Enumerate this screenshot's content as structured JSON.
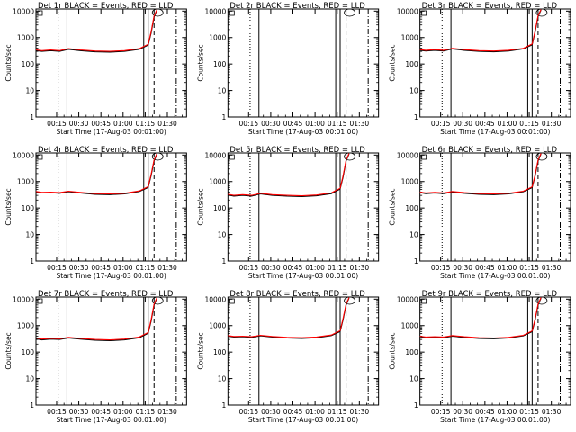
{
  "colors": {
    "events": "#000000",
    "lld": "#ff0000",
    "background": "#ffffff"
  },
  "chart_data": [
    {
      "type": "line",
      "title": "Det 1r BLACK = Events, RED = LLD",
      "xlabel": "Start Time (17-Aug-03 00:01:00)",
      "ylabel": "Counts/sec",
      "x_tick_labels": [
        "00:15",
        "00:30",
        "00:45",
        "01:00",
        "01:15",
        "01:30"
      ],
      "y_tick_labels": [
        "1",
        "10",
        "100",
        "1000",
        "10000"
      ],
      "ylim": [
        1,
        12000
      ],
      "y_scale": "log",
      "x_unit": "minutes since 00:01",
      "xlim": [
        0,
        102
      ],
      "series": [
        {
          "name": "Events",
          "color": "#000000",
          "x": [
            0,
            4,
            10,
            16,
            22,
            30,
            40,
            50,
            60,
            70,
            76,
            78,
            80,
            82
          ],
          "y": [
            320,
            300,
            320,
            300,
            360,
            320,
            290,
            280,
            300,
            360,
            520,
            1500,
            6000,
            11000
          ]
        },
        {
          "name": "LLD",
          "color": "#ff0000",
          "x": [
            0,
            4,
            10,
            16,
            22,
            30,
            40,
            50,
            60,
            70,
            76,
            78,
            80,
            82
          ],
          "y": [
            340,
            320,
            340,
            320,
            380,
            340,
            310,
            300,
            320,
            380,
            560,
            1700,
            6500,
            11500
          ]
        }
      ],
      "vlines": [
        {
          "x": 15,
          "style": "dotted"
        },
        {
          "x": 21,
          "style": "solid"
        },
        {
          "x": 73,
          "style": "solid"
        },
        {
          "x": 76,
          "style": "solid"
        },
        {
          "x": 80,
          "style": "dashed"
        },
        {
          "x": 95,
          "style": "dashdot"
        }
      ]
    },
    {
      "type": "line",
      "title": "Det 2r BLACK = Events, RED = LLD",
      "xlabel": "Start Time (17-Aug-03 00:01:00)",
      "ylabel": "Counts/sec",
      "x_tick_labels": [
        "00:15",
        "00:30",
        "00:45",
        "01:00",
        "01:15",
        "01:30"
      ],
      "y_tick_labels": [
        "1",
        "10",
        "100",
        "1000",
        "10000"
      ],
      "ylim": [
        1,
        12000
      ],
      "y_scale": "log",
      "x_unit": "minutes since 00:01",
      "xlim": [
        0,
        102
      ],
      "series": [],
      "vlines": [
        {
          "x": 15,
          "style": "dotted"
        },
        {
          "x": 21,
          "style": "solid"
        },
        {
          "x": 73,
          "style": "solid"
        },
        {
          "x": 76,
          "style": "solid"
        },
        {
          "x": 80,
          "style": "dashed"
        },
        {
          "x": 95,
          "style": "dashdot"
        }
      ]
    },
    {
      "type": "line",
      "title": "Det 3r BLACK = Events, RED = LLD",
      "xlabel": "Start Time (17-Aug-03 00:01:00)",
      "ylabel": "Counts/sec",
      "x_tick_labels": [
        "00:15",
        "00:30",
        "00:45",
        "01:00",
        "01:15",
        "01:30"
      ],
      "y_tick_labels": [
        "1",
        "10",
        "100",
        "1000",
        "10000"
      ],
      "ylim": [
        1,
        12000
      ],
      "y_scale": "log",
      "x_unit": "minutes since 00:01",
      "xlim": [
        0,
        102
      ],
      "series": [
        {
          "name": "Events",
          "color": "#000000",
          "x": [
            0,
            4,
            10,
            16,
            22,
            30,
            40,
            50,
            60,
            70,
            76,
            78,
            80,
            82
          ],
          "y": [
            330,
            310,
            330,
            310,
            370,
            330,
            300,
            290,
            310,
            370,
            530,
            1600,
            6200,
            11000
          ]
        },
        {
          "name": "LLD",
          "color": "#ff0000",
          "x": [
            0,
            4,
            10,
            16,
            22,
            30,
            40,
            50,
            60,
            70,
            76,
            78,
            80,
            82
          ],
          "y": [
            350,
            330,
            350,
            330,
            390,
            350,
            320,
            310,
            330,
            390,
            570,
            1800,
            6700,
            11500
          ]
        }
      ],
      "vlines": [
        {
          "x": 15,
          "style": "dotted"
        },
        {
          "x": 21,
          "style": "solid"
        },
        {
          "x": 73,
          "style": "solid"
        },
        {
          "x": 76,
          "style": "solid"
        },
        {
          "x": 80,
          "style": "dashed"
        },
        {
          "x": 95,
          "style": "dashdot"
        }
      ]
    },
    {
      "type": "line",
      "title": "Det 4r BLACK = Events, RED = LLD",
      "xlabel": "Start Time (17-Aug-03 00:01:00)",
      "ylabel": "Counts/sec",
      "x_tick_labels": [
        "00:15",
        "00:30",
        "00:45",
        "01:00",
        "01:15",
        "01:30"
      ],
      "y_tick_labels": [
        "1",
        "10",
        "100",
        "1000",
        "10000"
      ],
      "ylim": [
        1,
        12000
      ],
      "y_scale": "log",
      "x_unit": "minutes since 00:01",
      "xlim": [
        0,
        102
      ],
      "series": [
        {
          "name": "Events",
          "color": "#000000",
          "x": [
            0,
            4,
            10,
            16,
            22,
            30,
            40,
            50,
            60,
            70,
            76,
            78,
            80,
            82
          ],
          "y": [
            400,
            370,
            380,
            360,
            410,
            370,
            330,
            320,
            340,
            420,
            600,
            1700,
            6000,
            11000
          ]
        },
        {
          "name": "LLD",
          "color": "#ff0000",
          "x": [
            0,
            4,
            10,
            16,
            22,
            30,
            40,
            50,
            60,
            70,
            76,
            78,
            80,
            82
          ],
          "y": [
            420,
            390,
            400,
            380,
            430,
            390,
            350,
            340,
            360,
            440,
            640,
            1900,
            6500,
            11500
          ]
        }
      ],
      "vlines": [
        {
          "x": 15,
          "style": "dotted"
        },
        {
          "x": 21,
          "style": "solid"
        },
        {
          "x": 73,
          "style": "solid"
        },
        {
          "x": 76,
          "style": "solid"
        },
        {
          "x": 80,
          "style": "dashed"
        },
        {
          "x": 95,
          "style": "dashdot"
        }
      ]
    },
    {
      "type": "line",
      "title": "Det 5r BLACK = Events, RED = LLD",
      "xlabel": "Start Time (17-Aug-03 00:01:00)",
      "ylabel": "Counts/sec",
      "x_tick_labels": [
        "00:15",
        "00:30",
        "00:45",
        "01:00",
        "01:15",
        "01:30"
      ],
      "y_tick_labels": [
        "1",
        "10",
        "100",
        "1000",
        "10000"
      ],
      "ylim": [
        1,
        12000
      ],
      "y_scale": "log",
      "x_unit": "minutes since 00:01",
      "xlim": [
        0,
        102
      ],
      "series": [
        {
          "name": "Events",
          "color": "#000000",
          "x": [
            0,
            4,
            10,
            16,
            22,
            30,
            40,
            50,
            60,
            70,
            76,
            78,
            80,
            82
          ],
          "y": [
            310,
            280,
            300,
            280,
            340,
            300,
            280,
            270,
            290,
            350,
            520,
            1500,
            6000,
            11000
          ]
        },
        {
          "name": "LLD",
          "color": "#ff0000",
          "x": [
            0,
            4,
            10,
            16,
            22,
            30,
            40,
            50,
            60,
            70,
            76,
            78,
            80,
            82
          ],
          "y": [
            330,
            300,
            320,
            300,
            360,
            320,
            300,
            290,
            310,
            370,
            560,
            1700,
            6500,
            11500
          ]
        }
      ],
      "vlines": [
        {
          "x": 15,
          "style": "dotted"
        },
        {
          "x": 21,
          "style": "solid"
        },
        {
          "x": 73,
          "style": "solid"
        },
        {
          "x": 76,
          "style": "solid"
        },
        {
          "x": 80,
          "style": "dashed"
        },
        {
          "x": 95,
          "style": "dashdot"
        }
      ]
    },
    {
      "type": "line",
      "title": "Det 6r BLACK = Events, RED = LLD",
      "xlabel": "Start Time (17-Aug-03 00:01:00)",
      "ylabel": "Counts/sec",
      "x_tick_labels": [
        "00:15",
        "00:30",
        "00:45",
        "01:00",
        "01:15",
        "01:30"
      ],
      "y_tick_labels": [
        "1",
        "10",
        "100",
        "1000",
        "10000"
      ],
      "ylim": [
        1,
        12000
      ],
      "y_scale": "log",
      "x_unit": "minutes since 00:01",
      "xlim": [
        0,
        102
      ],
      "series": [
        {
          "name": "Events",
          "color": "#000000",
          "x": [
            0,
            4,
            10,
            16,
            22,
            30,
            40,
            50,
            60,
            70,
            76,
            78,
            80,
            82
          ],
          "y": [
            380,
            350,
            370,
            350,
            400,
            360,
            330,
            320,
            340,
            410,
            590,
            1600,
            6000,
            11000
          ]
        },
        {
          "name": "LLD",
          "color": "#ff0000",
          "x": [
            0,
            4,
            10,
            16,
            22,
            30,
            40,
            50,
            60,
            70,
            76,
            78,
            80,
            82
          ],
          "y": [
            400,
            370,
            390,
            370,
            420,
            380,
            350,
            340,
            360,
            430,
            630,
            1800,
            6500,
            11500
          ]
        }
      ],
      "vlines": [
        {
          "x": 15,
          "style": "dotted"
        },
        {
          "x": 21,
          "style": "solid"
        },
        {
          "x": 73,
          "style": "solid"
        },
        {
          "x": 76,
          "style": "solid"
        },
        {
          "x": 80,
          "style": "dashed"
        },
        {
          "x": 95,
          "style": "dashdot"
        }
      ]
    },
    {
      "type": "line",
      "title": "Det 7r BLACK = Events, RED = LLD",
      "xlabel": "Start Time (17-Aug-03 00:01:00)",
      "ylabel": "Counts/sec",
      "x_tick_labels": [
        "00:15",
        "00:30",
        "00:45",
        "01:00",
        "01:15",
        "01:30"
      ],
      "y_tick_labels": [
        "1",
        "10",
        "100",
        "1000",
        "10000"
      ],
      "ylim": [
        1,
        12000
      ],
      "y_scale": "log",
      "x_unit": "minutes since 00:01",
      "xlim": [
        0,
        102
      ],
      "series": [
        {
          "name": "Events",
          "color": "#000000",
          "x": [
            0,
            4,
            10,
            16,
            22,
            30,
            40,
            50,
            60,
            70,
            76,
            78,
            80,
            82
          ],
          "y": [
            320,
            290,
            310,
            300,
            340,
            310,
            280,
            270,
            290,
            350,
            510,
            1500,
            6000,
            11000
          ]
        },
        {
          "name": "LLD",
          "color": "#ff0000",
          "x": [
            0,
            4,
            10,
            16,
            22,
            30,
            40,
            50,
            60,
            70,
            76,
            78,
            80,
            82
          ],
          "y": [
            340,
            310,
            330,
            320,
            360,
            330,
            300,
            290,
            310,
            370,
            550,
            1700,
            6500,
            11500
          ]
        }
      ],
      "vlines": [
        {
          "x": 15,
          "style": "dotted"
        },
        {
          "x": 21,
          "style": "solid"
        },
        {
          "x": 73,
          "style": "solid"
        },
        {
          "x": 76,
          "style": "solid"
        },
        {
          "x": 80,
          "style": "dashed"
        },
        {
          "x": 95,
          "style": "dashdot"
        }
      ]
    },
    {
      "type": "line",
      "title": "Det 8r BLACK = Events, RED = LLD",
      "xlabel": "Start Time (17-Aug-03 00:01:00)",
      "ylabel": "Counts/sec",
      "x_tick_labels": [
        "00:15",
        "00:30",
        "00:45",
        "01:00",
        "01:15",
        "01:30"
      ],
      "y_tick_labels": [
        "1",
        "10",
        "100",
        "1000",
        "10000"
      ],
      "ylim": [
        1,
        12000
      ],
      "y_scale": "log",
      "x_unit": "minutes since 00:01",
      "xlim": [
        0,
        102
      ],
      "series": [
        {
          "name": "Events",
          "color": "#000000",
          "x": [
            0,
            4,
            10,
            16,
            22,
            30,
            40,
            50,
            60,
            70,
            76,
            78,
            80,
            82
          ],
          "y": [
            400,
            370,
            380,
            360,
            410,
            370,
            340,
            330,
            350,
            420,
            600,
            1700,
            6000,
            11000
          ]
        },
        {
          "name": "LLD",
          "color": "#ff0000",
          "x": [
            0,
            4,
            10,
            16,
            22,
            30,
            40,
            50,
            60,
            70,
            76,
            78,
            80,
            82
          ],
          "y": [
            420,
            390,
            400,
            380,
            430,
            390,
            360,
            350,
            370,
            440,
            640,
            1900,
            6500,
            11500
          ]
        }
      ],
      "vlines": [
        {
          "x": 15,
          "style": "dotted"
        },
        {
          "x": 21,
          "style": "solid"
        },
        {
          "x": 73,
          "style": "solid"
        },
        {
          "x": 76,
          "style": "solid"
        },
        {
          "x": 80,
          "style": "dashed"
        },
        {
          "x": 95,
          "style": "dashdot"
        }
      ]
    },
    {
      "type": "line",
      "title": "Det 9r BLACK = Events, RED = LLD",
      "xlabel": "Start Time (17-Aug-03 00:01:00)",
      "ylabel": "Counts/sec",
      "x_tick_labels": [
        "00:15",
        "00:30",
        "00:45",
        "01:00",
        "01:15",
        "01:30"
      ],
      "y_tick_labels": [
        "1",
        "10",
        "100",
        "1000",
        "10000"
      ],
      "ylim": [
        1,
        12000
      ],
      "y_scale": "log",
      "x_unit": "minutes since 00:01",
      "xlim": [
        0,
        102
      ],
      "series": [
        {
          "name": "Events",
          "color": "#000000",
          "x": [
            0,
            4,
            10,
            16,
            22,
            30,
            40,
            50,
            60,
            70,
            76,
            78,
            80,
            82
          ],
          "y": [
            380,
            350,
            360,
            350,
            400,
            360,
            330,
            320,
            340,
            410,
            590,
            1600,
            6000,
            11000
          ]
        },
        {
          "name": "LLD",
          "color": "#ff0000",
          "x": [
            0,
            4,
            10,
            16,
            22,
            30,
            40,
            50,
            60,
            70,
            76,
            78,
            80,
            82
          ],
          "y": [
            400,
            370,
            380,
            370,
            420,
            380,
            350,
            340,
            360,
            430,
            630,
            1800,
            6500,
            11500
          ]
        }
      ],
      "vlines": [
        {
          "x": 15,
          "style": "dotted"
        },
        {
          "x": 21,
          "style": "solid"
        },
        {
          "x": 73,
          "style": "solid"
        },
        {
          "x": 76,
          "style": "solid"
        },
        {
          "x": 80,
          "style": "dashed"
        },
        {
          "x": 95,
          "style": "dashdot"
        }
      ]
    }
  ]
}
